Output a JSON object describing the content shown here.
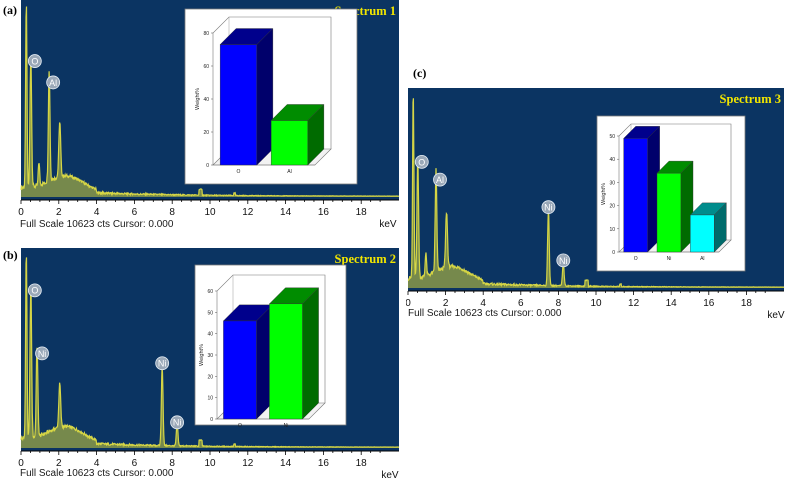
{
  "panels": [
    {
      "tag": "(a)",
      "spectrum_title": "Spectrum 1",
      "full_scale_text": "Full Scale 10623 cts Cursor: 0.000",
      "unit_label": "keV",
      "peak_labels": [
        "O",
        "Al"
      ],
      "inset_ylabel": "Weight%",
      "colors": {
        "bar1": "#0000ff",
        "bar2": "#00ff00"
      }
    },
    {
      "tag": "(b)",
      "spectrum_title": "Spectrum 2",
      "full_scale_text": "Full Scale 10623 cts Cursor: 0.000",
      "unit_label": "keV",
      "peak_labels": [
        "O",
        "Ni",
        "Ni",
        "Ni"
      ],
      "inset_ylabel": "Weight%",
      "colors": {
        "bar1": "#0000ff",
        "bar2": "#00ff00"
      }
    },
    {
      "tag": "(c)",
      "spectrum_title": "Spectrum 3",
      "full_scale_text": "Full Scale 10623 cts Cursor: 0.000",
      "unit_label": "keV",
      "peak_labels": [
        "O",
        "Al",
        "Ni",
        "Ni"
      ],
      "inset_ylabel": "Weight%",
      "colors": {
        "bar1": "#0000ff",
        "bar2": "#00ff00",
        "bar3": "#00ffff"
      }
    }
  ],
  "chart_data": [
    {
      "type": "area",
      "title": "Spectrum 1",
      "xlabel": "keV",
      "xlim": [
        0,
        20
      ],
      "xticks": [
        0,
        2,
        4,
        6,
        8,
        10,
        12,
        14,
        16,
        18
      ],
      "peaks": [
        {
          "label": "O",
          "x": 0.52,
          "y": 0.68
        },
        {
          "label": "Al",
          "x": 1.49,
          "y": 0.57
        }
      ],
      "inset": {
        "type": "bar",
        "ylabel": "Weight%",
        "ylim": [
          0,
          80
        ],
        "yticks": [
          0,
          20,
          40,
          60,
          80
        ],
        "categories": [
          "O",
          "Al"
        ],
        "values": [
          73,
          27
        ],
        "colors": [
          "#0000ff",
          "#00ff00"
        ]
      }
    },
    {
      "type": "area",
      "title": "Spectrum 2",
      "xlabel": "keV",
      "xlim": [
        0,
        20
      ],
      "xticks": [
        0,
        2,
        4,
        6,
        8,
        10,
        12,
        14,
        16,
        18
      ],
      "peaks": [
        {
          "label": "O",
          "x": 0.52,
          "y": 0.78
        },
        {
          "label": "Ni",
          "x": 0.85,
          "y": 0.46
        },
        {
          "label": "Ni",
          "x": 7.47,
          "y": 0.41
        },
        {
          "label": "Ni",
          "x": 8.26,
          "y": 0.11
        }
      ],
      "inset": {
        "type": "bar",
        "ylabel": "Weight%",
        "ylim": [
          0,
          60
        ],
        "yticks": [
          0,
          10,
          20,
          30,
          40,
          50,
          60
        ],
        "categories": [
          "O",
          "Ni"
        ],
        "values": [
          46,
          54
        ],
        "colors": [
          "#0000ff",
          "#00ff00"
        ]
      }
    },
    {
      "type": "area",
      "title": "Spectrum 3",
      "xlabel": "keV",
      "xlim": [
        0,
        20
      ],
      "xticks": [
        0,
        2,
        4,
        6,
        8,
        10,
        12,
        14,
        16,
        18
      ],
      "peaks": [
        {
          "label": "O",
          "x": 0.52,
          "y": 0.62
        },
        {
          "label": "Al",
          "x": 1.49,
          "y": 0.53
        },
        {
          "label": "Ni",
          "x": 7.47,
          "y": 0.39
        },
        {
          "label": "Ni",
          "x": 8.26,
          "y": 0.12
        }
      ],
      "inset": {
        "type": "bar",
        "ylabel": "Weight%",
        "ylim": [
          0,
          50
        ],
        "yticks": [
          0,
          10,
          20,
          30,
          40,
          50
        ],
        "categories": [
          "O",
          "Ni",
          "Al"
        ],
        "values": [
          49,
          34,
          16
        ],
        "colors": [
          "#0000ff",
          "#00ff00",
          "#00ffff"
        ]
      }
    }
  ]
}
